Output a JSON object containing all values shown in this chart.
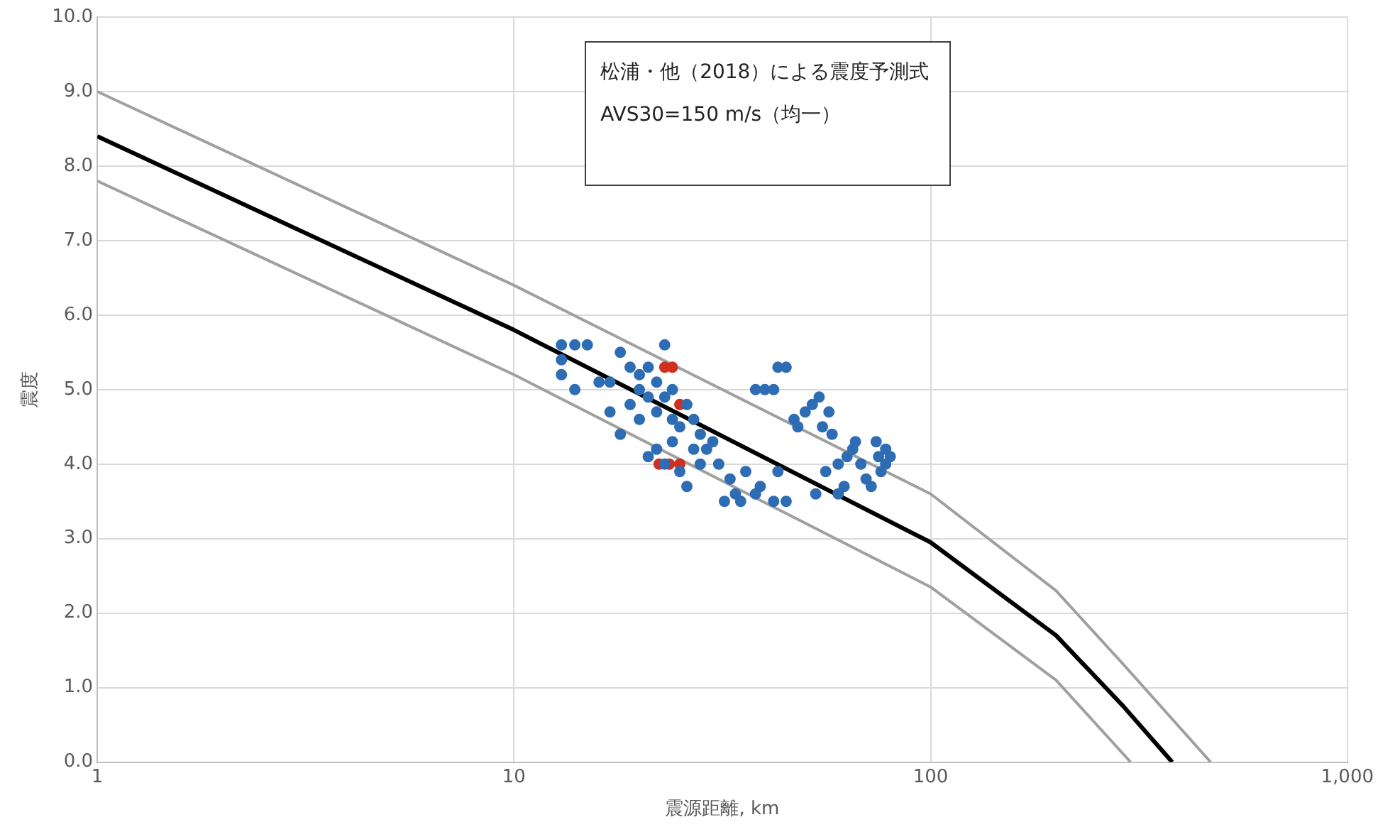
{
  "chart_data": {
    "type": "line",
    "xlabel": "震源距離, km",
    "ylabel": "震度",
    "log": "x",
    "grid": true,
    "legend": false,
    "xlim": [
      1,
      1000
    ],
    "xticks": [
      1,
      10,
      100,
      {
        "value": 1000,
        "label": "1,000"
      }
    ],
    "ylim": [
      0,
      10
    ],
    "yticks": [
      {
        "value": 0,
        "label": "0.0"
      },
      {
        "value": 1,
        "label": "1.0"
      },
      {
        "value": 2,
        "label": "2.0"
      },
      {
        "value": 3,
        "label": "3.0"
      },
      {
        "value": 4,
        "label": "4.0"
      },
      {
        "value": 5,
        "label": "5.0"
      },
      {
        "value": 6,
        "label": "6.0"
      },
      {
        "value": 7,
        "label": "7.0"
      },
      {
        "value": 8,
        "label": "8.0"
      },
      {
        "value": 9,
        "label": "9.0"
      },
      {
        "value": 10,
        "label": "10.0"
      }
    ],
    "annotations": [
      "松浦・他（2018）による震度予測式",
      "AVS30=150 m/s（均一）"
    ],
    "series": [
      {
        "type": "line",
        "color": "#a0a0a0",
        "x": [
          1,
          10,
          100,
          200,
          286,
          470
        ],
        "values": [
          9.0,
          6.4,
          3.6,
          2.3,
          1.35,
          0
        ]
      },
      {
        "type": "line",
        "color": "#a0a0a0",
        "x": [
          1,
          10,
          100,
          200,
          302
        ],
        "values": [
          7.8,
          5.2,
          2.35,
          1.1,
          0
        ]
      },
      {
        "type": "line",
        "color": "#000000",
        "x": [
          1,
          10,
          100,
          200,
          290,
          380
        ],
        "values": [
          8.4,
          5.8,
          2.95,
          1.7,
          0.75,
          0
        ]
      },
      {
        "type": "scatter",
        "color": "#2e6db4",
        "marker": "circle",
        "x": [
          13,
          13,
          13,
          14,
          15,
          14,
          16,
          17,
          18,
          19,
          20,
          20,
          19,
          21,
          22,
          21,
          22,
          23,
          18,
          20,
          21,
          22,
          23,
          24,
          24,
          25,
          23,
          26,
          25,
          27,
          27,
          28,
          28,
          29,
          30,
          31,
          33,
          32,
          34,
          35,
          36,
          38,
          39,
          42,
          45,
          43,
          26,
          24,
          17,
          38,
          40,
          42,
          43,
          45,
          47,
          48,
          50,
          52,
          54,
          55,
          57,
          58,
          60,
          62,
          63,
          65,
          66,
          68,
          70,
          72,
          74,
          75,
          76,
          78,
          80,
          78,
          53,
          56,
          60
        ],
        "values": [
          5.6,
          5.4,
          5.2,
          5.6,
          5.6,
          5.0,
          5.1,
          5.1,
          5.5,
          5.3,
          5.2,
          5.0,
          4.8,
          5.3,
          5.1,
          4.9,
          4.7,
          4.9,
          4.4,
          4.6,
          4.1,
          4.2,
          5.6,
          4.6,
          4.3,
          4.5,
          4.0,
          3.7,
          3.9,
          4.2,
          4.6,
          4.4,
          4.0,
          4.2,
          4.3,
          4.0,
          3.8,
          3.5,
          3.6,
          3.5,
          3.9,
          3.6,
          3.7,
          3.5,
          3.5,
          3.9,
          4.8,
          5.0,
          4.7,
          5.0,
          5.0,
          5.0,
          5.3,
          5.3,
          4.6,
          4.5,
          4.7,
          4.8,
          4.9,
          4.5,
          4.7,
          4.4,
          3.6,
          3.7,
          4.1,
          4.2,
          4.3,
          4.0,
          3.8,
          3.7,
          4.3,
          4.1,
          3.9,
          4.0,
          4.1,
          4.2,
          3.6,
          3.9,
          4.0
        ]
      },
      {
        "type": "scatter",
        "color": "#d03020",
        "marker": "circle",
        "x": [
          23,
          24,
          25,
          22.3,
          23.6,
          25
        ],
        "values": [
          5.3,
          5.3,
          4.8,
          4.0,
          4.0,
          4.0
        ]
      }
    ]
  }
}
